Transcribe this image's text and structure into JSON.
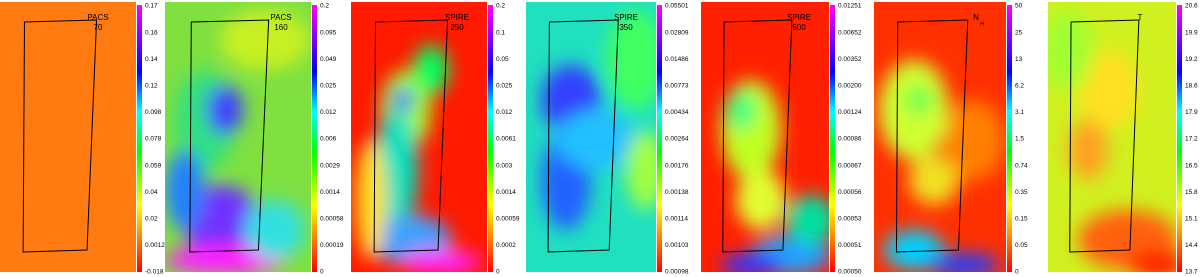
{
  "panels": [
    {
      "label": "PACS",
      "sublabel": "70",
      "colorbar_ticks": [
        "0.17",
        "0.16",
        "0.14",
        "0.12",
        "0.098",
        "0.078",
        "0.059",
        "0.04",
        "0.02",
        "0.0012",
        "-0.018"
      ]
    },
    {
      "label": "PACS",
      "sublabel": "160",
      "colorbar_ticks": [
        "0.2",
        "0.095",
        "0.049",
        "0.025",
        "0.012",
        "0.006",
        "0.0029",
        "0.0014",
        "0.00058",
        "0.00019",
        "0"
      ]
    },
    {
      "label": "SPIRE",
      "sublabel": "250",
      "colorbar_ticks": [
        "0.2",
        "0.1",
        "0.05",
        "0.025",
        "0.012",
        "0.0061",
        "0.003",
        "0.0014",
        "0.00059",
        "0.0002",
        "0"
      ]
    },
    {
      "label": "SPIRE",
      "sublabel": "350",
      "colorbar_ticks": [
        "0.05501",
        "0.02809",
        "0.01486",
        "0.00773",
        "0.00434",
        "0.00264",
        "0.00176",
        "0.00138",
        "0.00114",
        "0.00103",
        "0.00098"
      ]
    },
    {
      "label": "SPIRE",
      "sublabel": "500",
      "colorbar_ticks": [
        "0.01251",
        "0.00652",
        "0.00352",
        "0.00200",
        "0.00124",
        "0.00086",
        "0.00067",
        "0.00056",
        "0.00053",
        "0.00051",
        "0.00050"
      ]
    },
    {
      "label": "N",
      "sublabel": "H",
      "colorbar_ticks": [
        "50",
        "25",
        "13",
        "6.2",
        "3.1",
        "1.5",
        "0.74",
        "0.35",
        "0.15",
        "0.05",
        "0"
      ]
    },
    {
      "label": "T",
      "colorbar_ticks": [
        "20.6",
        "19.9",
        "19.2",
        "18.6",
        "17.9",
        "17.2",
        "16.5",
        "15.8",
        "15.1",
        "14.4",
        "13.7"
      ]
    }
  ]
}
